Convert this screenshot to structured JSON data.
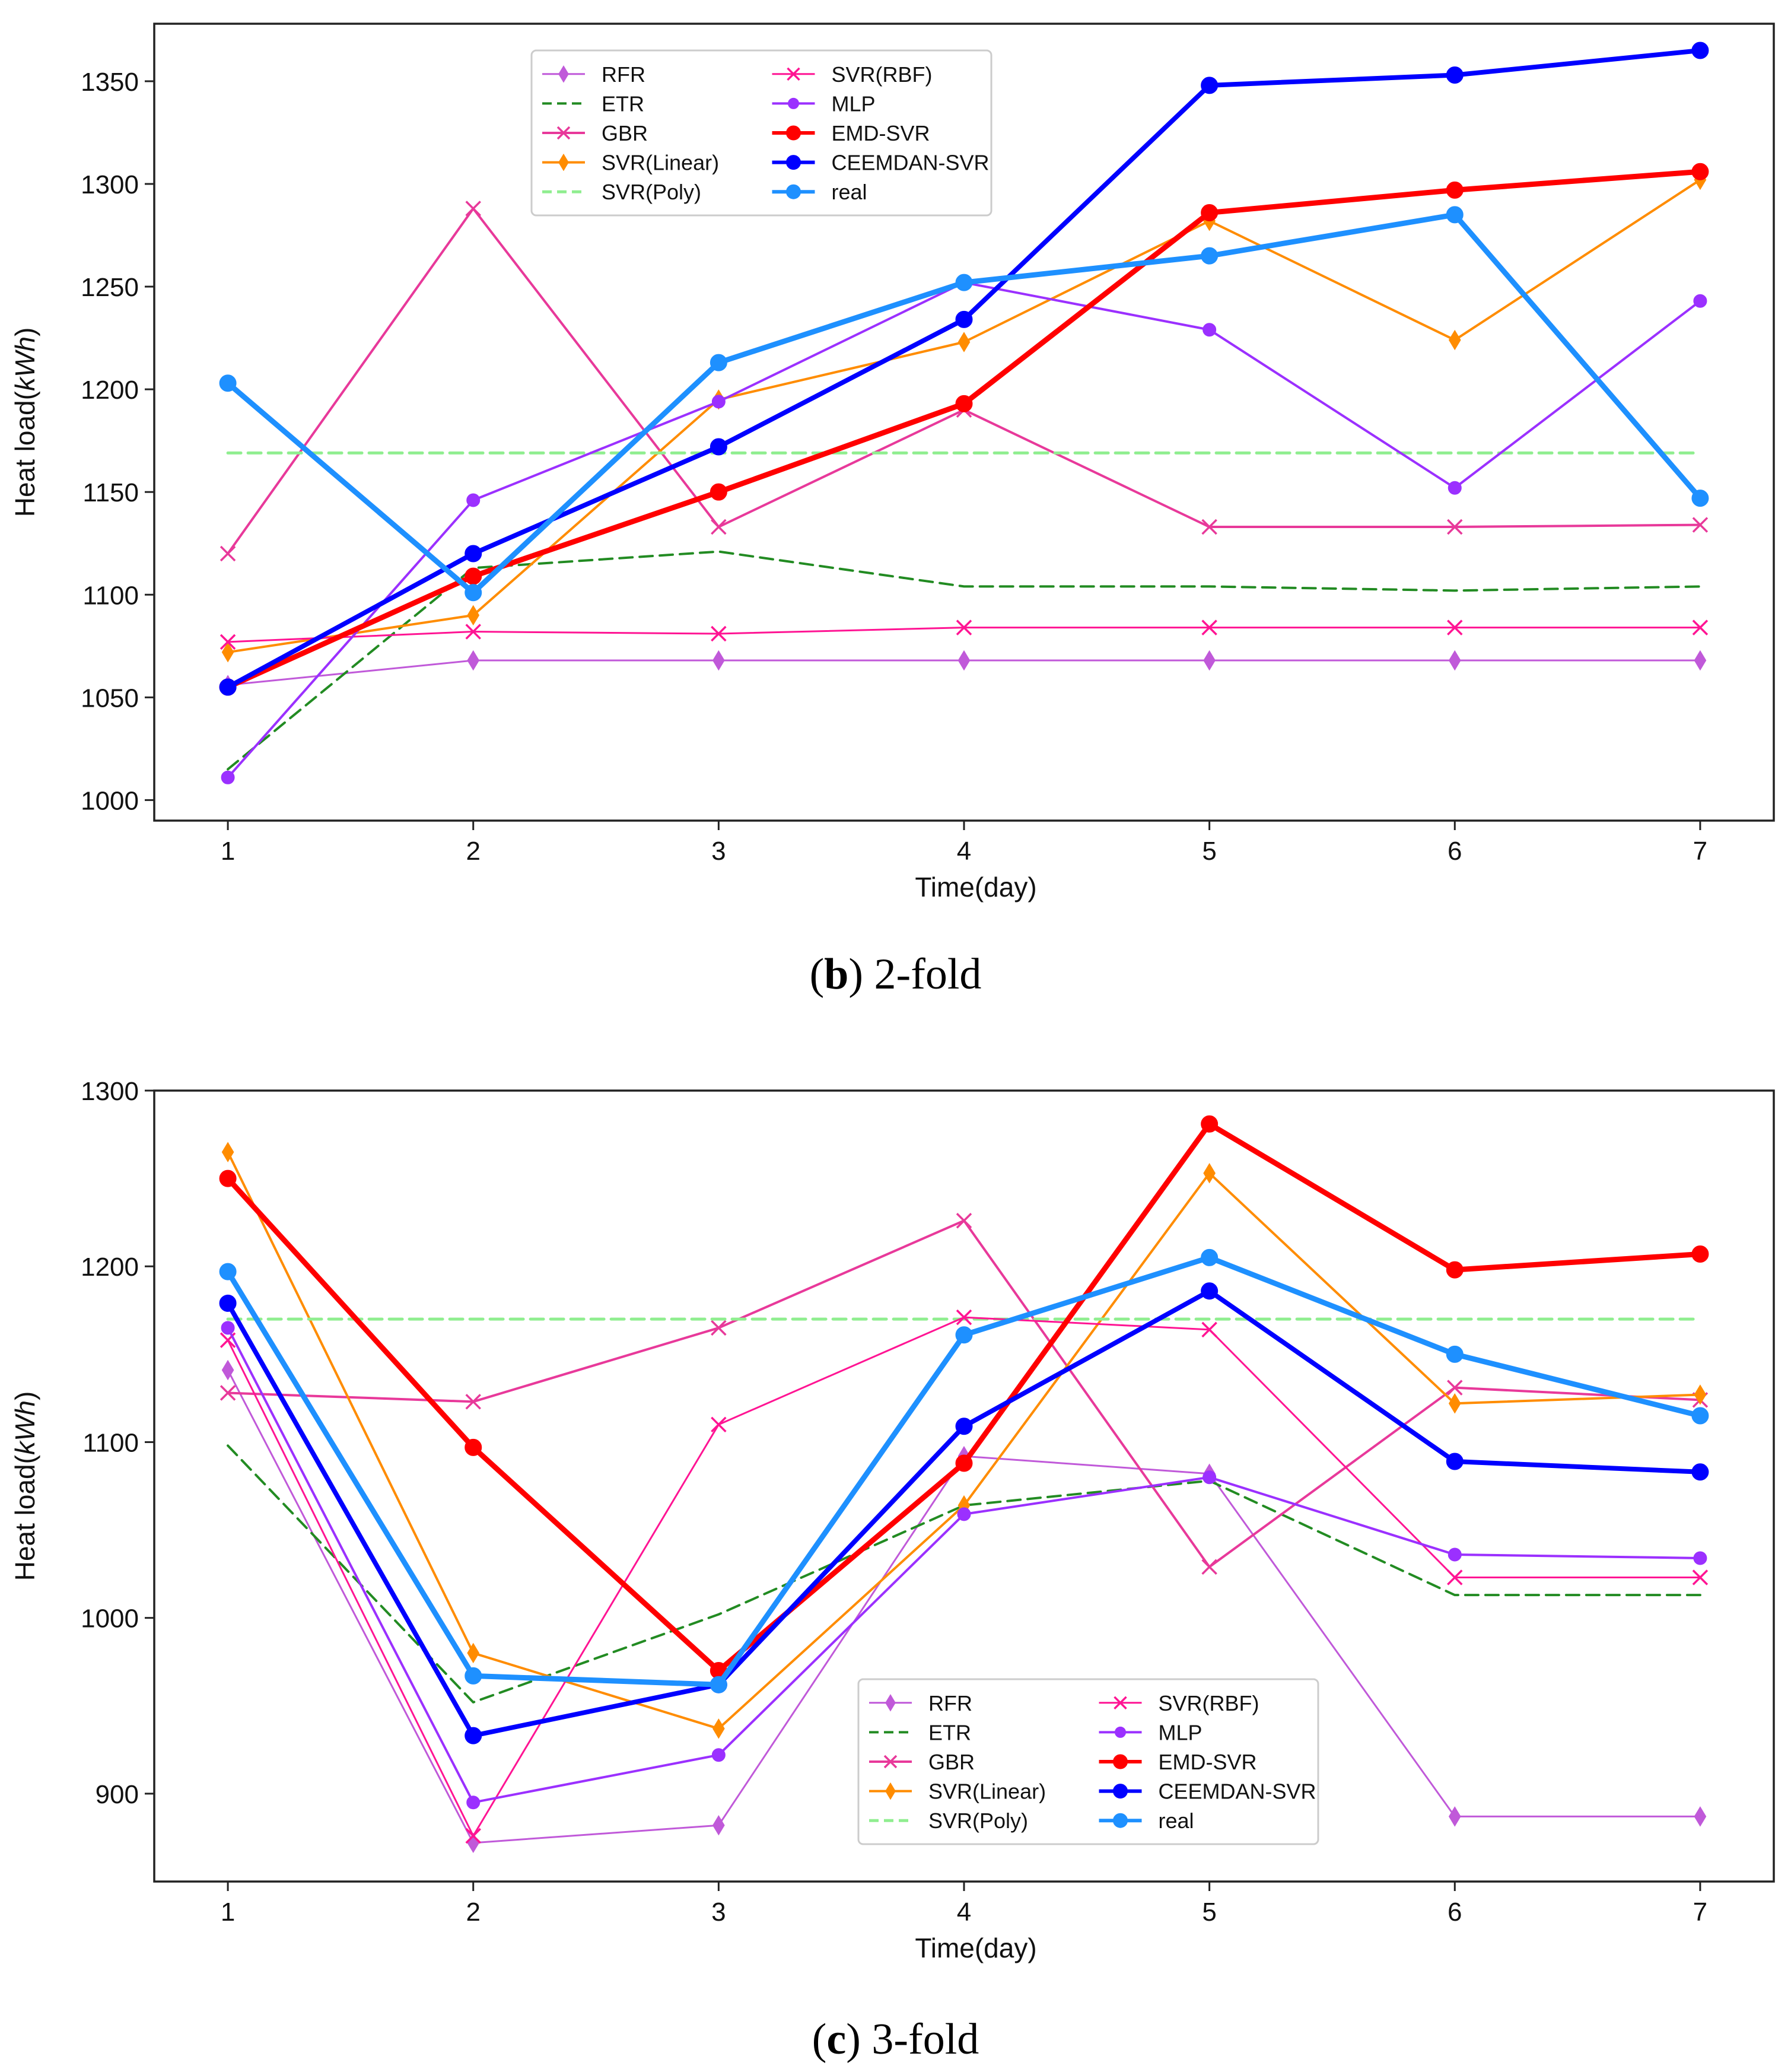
{
  "figure": {
    "captions": [
      {
        "open": "(",
        "letter": "b",
        "close": ")",
        "text": " 2-fold"
      },
      {
        "open": "(",
        "letter": "c",
        "close": ")",
        "text": " 3-fold"
      }
    ]
  },
  "chart_data": [
    {
      "type": "line",
      "title": "",
      "xlabel": "Time(day)",
      "ylabel": "Heat load(kWh)",
      "ylabel_plain": "Heat load(",
      "ylabel_italic": "kWh",
      "ylabel_close": ")",
      "x": [
        1,
        2,
        3,
        4,
        5,
        6,
        7
      ],
      "xlim": [
        0.7,
        7.3
      ],
      "ylim": [
        990,
        1378
      ],
      "yticks": [
        1000,
        1050,
        1100,
        1150,
        1200,
        1250,
        1300,
        1350
      ],
      "grid": false,
      "legend_position": "upper-left",
      "series": [
        {
          "name": "RFR",
          "color": "#c059d9",
          "style": "solid",
          "marker": "diamond",
          "width": 3,
          "values": [
            1056,
            1068,
            1068,
            1068,
            1068,
            1068,
            1068
          ]
        },
        {
          "name": "ETR",
          "color": "#228b22",
          "style": "dashed",
          "marker": "none",
          "width": 4,
          "values": [
            1015,
            1113,
            1121,
            1104,
            1104,
            1102,
            1104
          ]
        },
        {
          "name": "GBR",
          "color": "#e8399a",
          "style": "solid",
          "marker": "x",
          "width": 4,
          "values": [
            1120,
            1288,
            1133,
            1190,
            1133,
            1133,
            1134
          ]
        },
        {
          "name": "SVR(Linear)",
          "color": "#ff8c00",
          "style": "solid",
          "marker": "diamond",
          "width": 4,
          "values": [
            1072,
            1090,
            1195,
            1223,
            1282,
            1224,
            1302
          ]
        },
        {
          "name": "SVR(Poly)",
          "color": "#90ee90",
          "style": "dashed",
          "marker": "none",
          "width": 5,
          "values": [
            1169,
            1169,
            1169,
            1169,
            1169,
            1169,
            1169
          ]
        },
        {
          "name": "SVR(RBF)",
          "color": "#ff1493",
          "style": "solid",
          "marker": "x",
          "width": 3,
          "values": [
            1077,
            1082,
            1081,
            1084,
            1084,
            1084,
            1084
          ]
        },
        {
          "name": "MLP",
          "color": "#9b30ff",
          "style": "solid",
          "marker": "circle",
          "width": 4,
          "values": [
            1011,
            1146,
            1194,
            1252,
            1229,
            1152,
            1243
          ]
        },
        {
          "name": "EMD-SVR",
          "color": "#ff0000",
          "style": "solid",
          "marker": "circle",
          "width": 9,
          "values": [
            1055,
            1109,
            1150,
            1193,
            1286,
            1297,
            1306
          ]
        },
        {
          "name": "CEEMDAN-SVR",
          "color": "#0000ff",
          "style": "solid",
          "marker": "circle",
          "width": 8,
          "values": [
            1055,
            1120,
            1172,
            1234,
            1348,
            1353,
            1365
          ]
        },
        {
          "name": "real",
          "color": "#1e90ff",
          "style": "solid",
          "marker": "circle",
          "width": 9,
          "values": [
            1203,
            1101,
            1213,
            1252,
            1265,
            1285,
            1147
          ]
        }
      ]
    },
    {
      "type": "line",
      "title": "",
      "xlabel": "Time(day)",
      "ylabel": "Heat load(kWh)",
      "ylabel_plain": "Heat load(",
      "ylabel_italic": "kWh",
      "ylabel_close": ")",
      "x": [
        1,
        2,
        3,
        4,
        5,
        6,
        7
      ],
      "xlim": [
        0.7,
        7.3
      ],
      "ylim": [
        850,
        1300
      ],
      "yticks": [
        900,
        1000,
        1100,
        1200,
        1300
      ],
      "grid": false,
      "legend_position": "lower-center",
      "series": [
        {
          "name": "RFR",
          "color": "#c059d9",
          "style": "solid",
          "marker": "diamond",
          "width": 3,
          "values": [
            1141,
            872,
            882,
            1092,
            1082,
            887,
            887
          ]
        },
        {
          "name": "ETR",
          "color": "#228b22",
          "style": "dashed",
          "marker": "none",
          "width": 4,
          "values": [
            1098,
            952,
            1002,
            1064,
            1078,
            1013,
            1013
          ]
        },
        {
          "name": "GBR",
          "color": "#e8399a",
          "style": "solid",
          "marker": "x",
          "width": 4,
          "values": [
            1128,
            1123,
            1165,
            1226,
            1029,
            1131,
            1124
          ]
        },
        {
          "name": "SVR(Linear)",
          "color": "#ff8c00",
          "style": "solid",
          "marker": "diamond",
          "width": 4,
          "values": [
            1265,
            980,
            937,
            1064,
            1253,
            1122,
            1127
          ]
        },
        {
          "name": "SVR(Poly)",
          "color": "#90ee90",
          "style": "dashed",
          "marker": "none",
          "width": 5,
          "values": [
            1170,
            1170,
            1170,
            1170,
            1170,
            1170,
            1170
          ]
        },
        {
          "name": "SVR(RBF)",
          "color": "#ff1493",
          "style": "solid",
          "marker": "x",
          "width": 3,
          "values": [
            1158,
            876,
            1110,
            1171,
            1164,
            1023,
            1023
          ]
        },
        {
          "name": "MLP",
          "color": "#9b30ff",
          "style": "solid",
          "marker": "circle",
          "width": 4,
          "values": [
            1165,
            895,
            922,
            1059,
            1080,
            1036,
            1034
          ]
        },
        {
          "name": "EMD-SVR",
          "color": "#ff0000",
          "style": "solid",
          "marker": "circle",
          "width": 9,
          "values": [
            1250,
            1097,
            970,
            1088,
            1281,
            1198,
            1207
          ]
        },
        {
          "name": "CEEMDAN-SVR",
          "color": "#0000ff",
          "style": "solid",
          "marker": "circle",
          "width": 8,
          "values": [
            1179,
            933,
            962,
            1109,
            1186,
            1089,
            1083
          ]
        },
        {
          "name": "real",
          "color": "#1e90ff",
          "style": "solid",
          "marker": "circle",
          "width": 9,
          "values": [
            1197,
            967,
            962,
            1161,
            1205,
            1150,
            1115
          ]
        }
      ]
    }
  ]
}
